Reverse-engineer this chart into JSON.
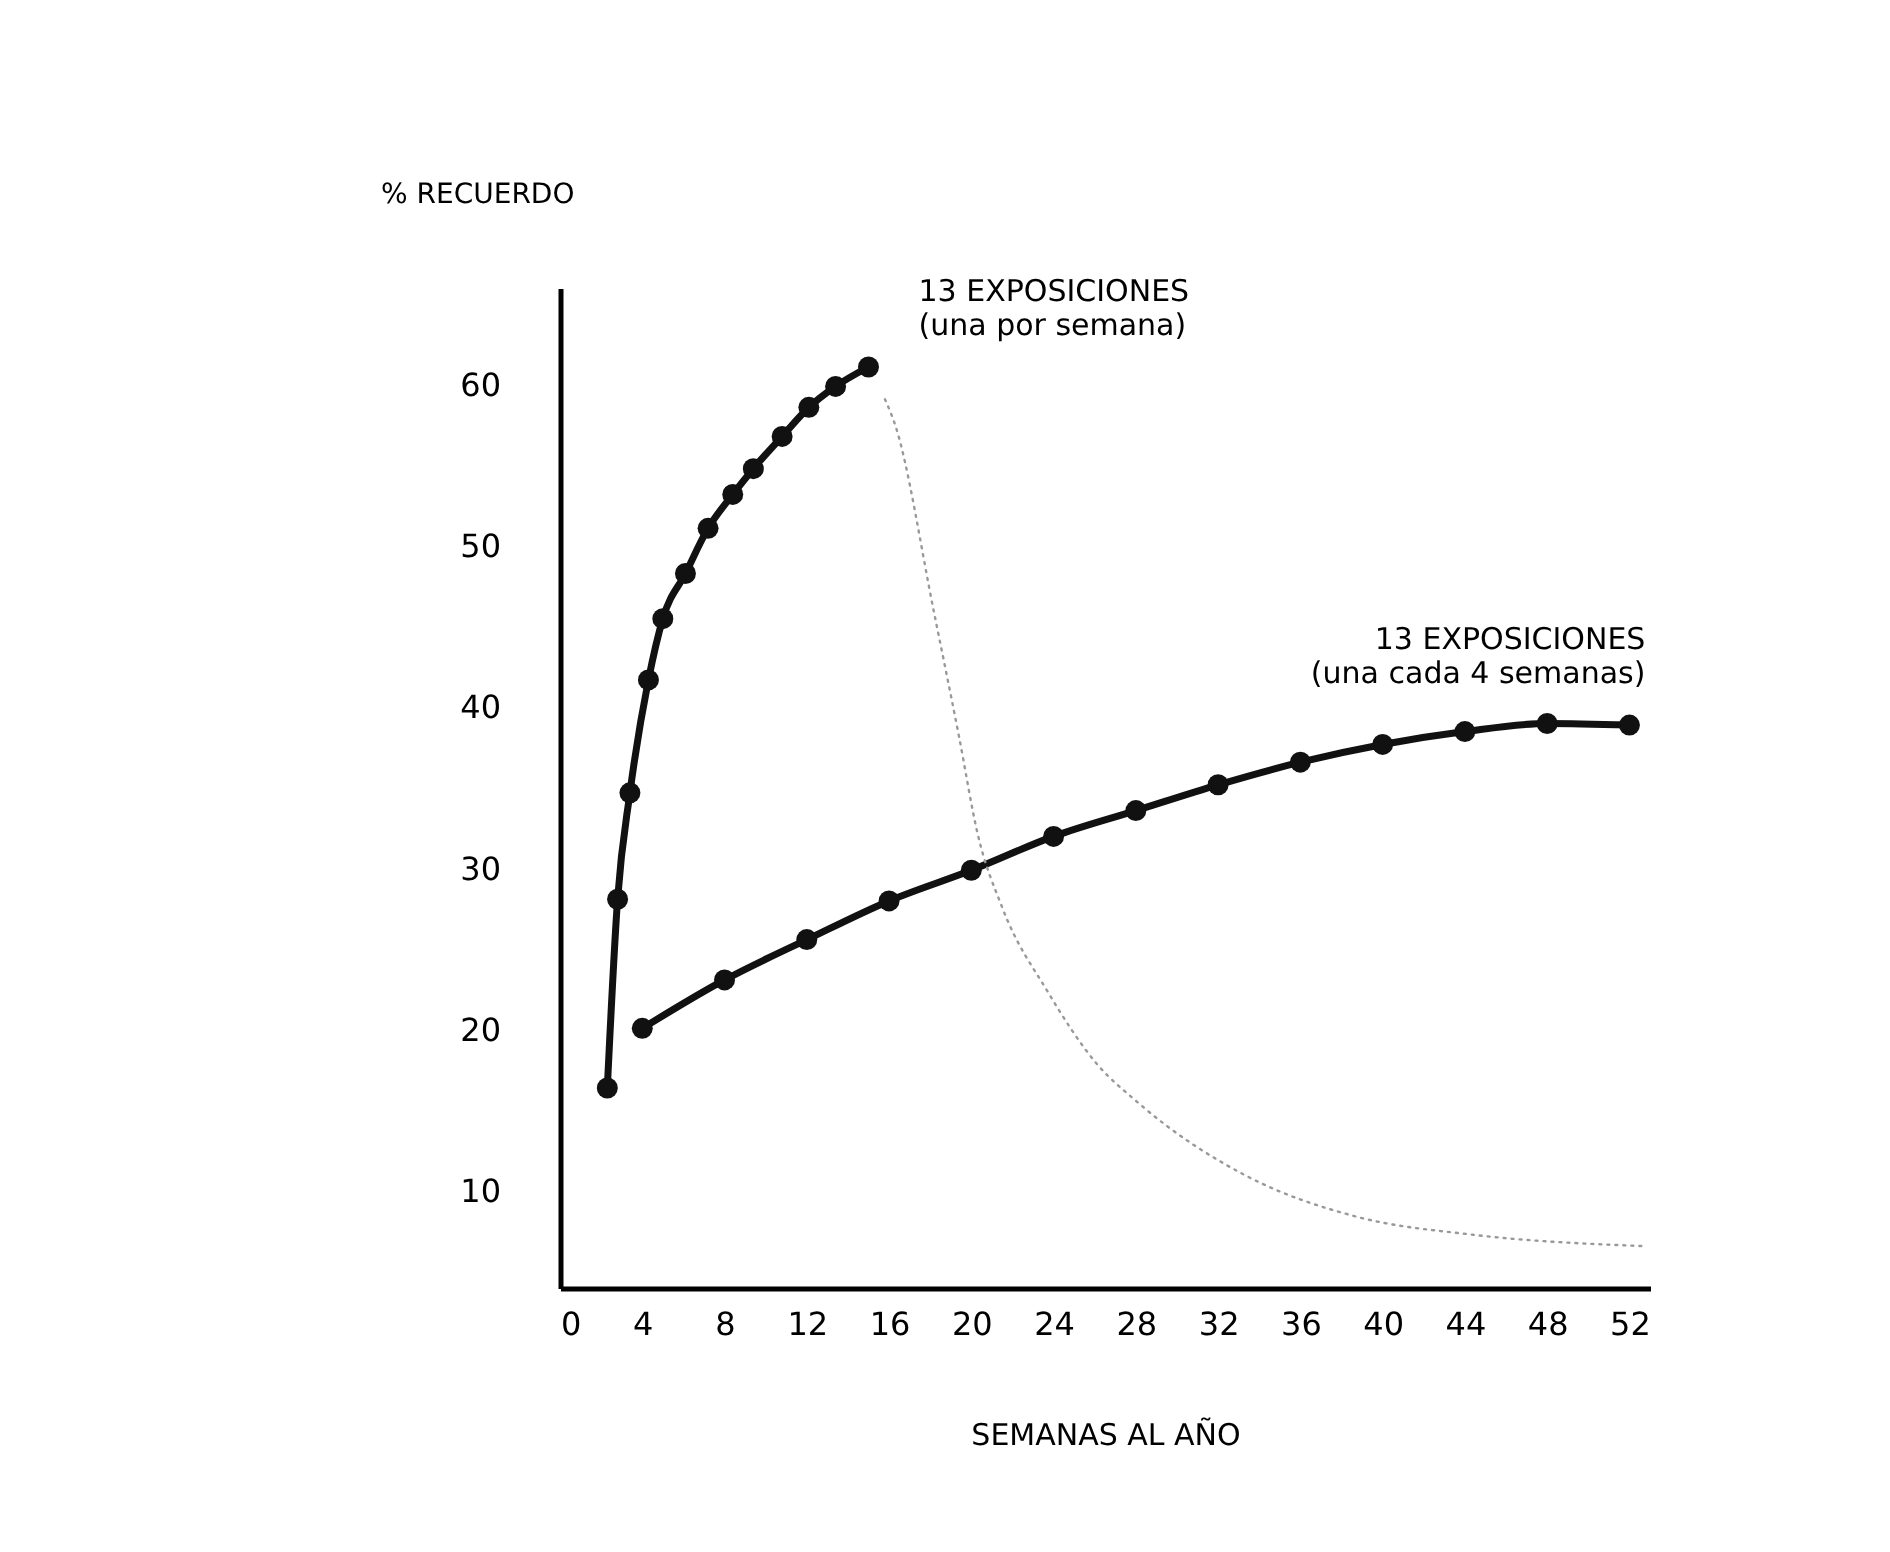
{
  "chart_data": {
    "type": "line",
    "xlabel": "SEMANAS AL AÑO",
    "ylabel": "% RECUERDO",
    "xlim": [
      0,
      53
    ],
    "ylim": [
      4,
      66
    ],
    "xticks": [
      0,
      4,
      8,
      12,
      16,
      20,
      24,
      28,
      32,
      36,
      40,
      44,
      48,
      52
    ],
    "yticks": [
      10,
      20,
      30,
      40,
      50,
      60
    ],
    "marker": "circle",
    "line_style": "solid",
    "series": [
      {
        "name": "13 EXPOSICIONES\n(una por semana)",
        "color": "#111111",
        "x": [
          2.3,
          2.8,
          3.4,
          4.3,
          5.0,
          6.1,
          7.2,
          8.4,
          9.4,
          10.8,
          12.1,
          13.4,
          15.0
        ],
        "values": [
          16.4,
          28.1,
          34.7,
          41.7,
          45.5,
          48.3,
          51.1,
          53.2,
          54.8,
          56.8,
          58.6,
          59.9,
          61.1
        ]
      },
      {
        "name": "13 EXPOSICIONES\n(una cada 4 semanas)",
        "color": "#111111",
        "x": [
          4,
          8,
          12,
          16,
          20,
          24,
          28,
          32,
          36,
          40,
          44,
          48,
          52
        ],
        "values": [
          20.1,
          23.1,
          25.6,
          28.0,
          29.9,
          32.0,
          33.6,
          35.2,
          36.6,
          37.7,
          38.5,
          39.0,
          38.9
        ]
      },
      {
        "color": "#999999",
        "marker": "none",
        "line_style": "dotted",
        "x": [
          15.8,
          16.3,
          18.2,
          19.4,
          20.3,
          21.5,
          23.7,
          26.1,
          28.1,
          33.3,
          38.8,
          44.4,
          52.6
        ],
        "values": [
          59.1,
          57.5,
          45.8,
          38.2,
          32.2,
          27.6,
          22.4,
          17.9,
          15.5,
          11.0,
          8.4,
          7.3,
          6.6
        ]
      }
    ]
  }
}
